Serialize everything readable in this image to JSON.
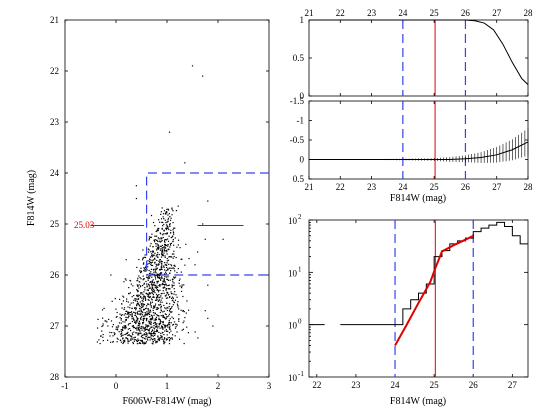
{
  "colors": {
    "axes": "#000000",
    "mag_limit": "#e00000",
    "range_box": "#3344ee",
    "data": "#000000"
  },
  "chart_data": [
    {
      "type": "scatter",
      "panel": "cmd",
      "xlabel": "F606W-F814W (mag)",
      "ylabel": "F814W (mag)",
      "xlim": [
        -1,
        3
      ],
      "ylim": [
        28,
        21
      ],
      "xticks": [
        "-1",
        "0",
        "1",
        "2",
        "3"
      ],
      "yticks": [
        "21",
        "22",
        "23",
        "24",
        "25",
        "26",
        "27",
        "28"
      ],
      "grid": false,
      "annotation": "25.03",
      "mag_limit": 25.03,
      "mag_limit_segments": [
        [
          -0.5,
          0.55
        ],
        [
          1.6,
          2.5
        ]
      ],
      "selection_box": {
        "x": [
          0.6,
          3.0
        ],
        "y": [
          24.0,
          26.0
        ]
      },
      "num_points": 1400,
      "sparse_points": [
        [
          1.5,
          21.9
        ],
        [
          1.7,
          22.1
        ],
        [
          1.05,
          23.2
        ],
        [
          1.35,
          23.8
        ],
        [
          0.4,
          24.25
        ],
        [
          0.4,
          24.5
        ],
        [
          1.8,
          24.55
        ],
        [
          1.7,
          25.0
        ],
        [
          1.75,
          25.3
        ],
        [
          2.1,
          25.3
        ],
        [
          1.6,
          25.55
        ],
        [
          0.2,
          25.7
        ],
        [
          1.55,
          25.8
        ],
        [
          -0.1,
          26.0
        ],
        [
          0.2,
          26.1
        ],
        [
          1.8,
          26.2
        ],
        [
          1.75,
          26.7
        ],
        [
          1.8,
          26.85
        ],
        [
          -0.2,
          26.9
        ],
        [
          0.05,
          27.0
        ],
        [
          -0.3,
          27.2
        ],
        [
          1.9,
          27.0
        ]
      ]
    },
    {
      "type": "line",
      "panel": "completeness",
      "xlim": [
        21,
        28
      ],
      "ylim": [
        0,
        1
      ],
      "xticks": [
        "21",
        "22",
        "23",
        "24",
        "25",
        "26",
        "27",
        "28"
      ],
      "yticks": [
        "0",
        "0.5",
        "1"
      ],
      "x": [
        21,
        25,
        26,
        26.3,
        26.6,
        26.9,
        27.2,
        27.5,
        27.8,
        28
      ],
      "values": [
        1.0,
        1.0,
        1.0,
        0.99,
        0.96,
        0.87,
        0.68,
        0.44,
        0.23,
        0.15
      ],
      "vlines": {
        "mag_limit": 25.03,
        "range": [
          24,
          26
        ]
      }
    },
    {
      "type": "line",
      "panel": "bias",
      "xlabel": "F814W (mag)",
      "xlim": [
        21,
        28
      ],
      "ylim": [
        0.5,
        -1.5
      ],
      "xticks": [
        "21",
        "22",
        "23",
        "24",
        "25",
        "26",
        "27",
        "28"
      ],
      "yticks": [
        "-1.5",
        "-1",
        "-0.5",
        "0",
        "0.5"
      ],
      "x": [
        21,
        22,
        23,
        24,
        25,
        25.5,
        26,
        26.5,
        27,
        27.5,
        28
      ],
      "values": [
        0.0,
        0.0,
        0.0,
        0.0,
        0.0,
        0.0,
        -0.02,
        -0.05,
        -0.12,
        -0.25,
        -0.45
      ],
      "errors": [
        0.005,
        0.008,
        0.012,
        0.02,
        0.035,
        0.06,
        0.09,
        0.14,
        0.2,
        0.27,
        0.35
      ],
      "vlines": {
        "mag_limit": 25.03,
        "range": [
          24,
          26
        ]
      }
    },
    {
      "type": "line",
      "panel": "luminosity-function",
      "xlabel": "F814W (mag)",
      "xlim": [
        21.8,
        27.4
      ],
      "ylim": [
        0.1,
        100
      ],
      "yscale": "log",
      "xticks": [
        "22",
        "23",
        "24",
        "25",
        "26",
        "27"
      ],
      "yticks": [
        "10",
        "10",
        "10",
        "10"
      ],
      "ytick_exponents": [
        "-1",
        "0",
        "1",
        "2"
      ],
      "histogram_edges": [
        21.8,
        22.2,
        22.6,
        23.0,
        23.4,
        23.8,
        24.0,
        24.2,
        24.4,
        24.6,
        24.8,
        25.0,
        25.2,
        25.4,
        25.6,
        25.8,
        26.0,
        26.2,
        26.4,
        26.6,
        26.8,
        27.0,
        27.2,
        27.4
      ],
      "histogram_counts": [
        1,
        0,
        1,
        1,
        1,
        1,
        1,
        2,
        3,
        4,
        6,
        20,
        26,
        35,
        40,
        45,
        60,
        70,
        80,
        90,
        75,
        50,
        35
      ],
      "fit_x": [
        24.0,
        24.3,
        24.6,
        24.9,
        25.03,
        25.2,
        25.5,
        25.8,
        26.0
      ],
      "fit_values": [
        0.4,
        1.0,
        2.6,
        6.5,
        12,
        25,
        33,
        42,
        50
      ],
      "vlines": {
        "mag_limit": 25.03,
        "range": [
          24,
          26
        ]
      }
    }
  ]
}
